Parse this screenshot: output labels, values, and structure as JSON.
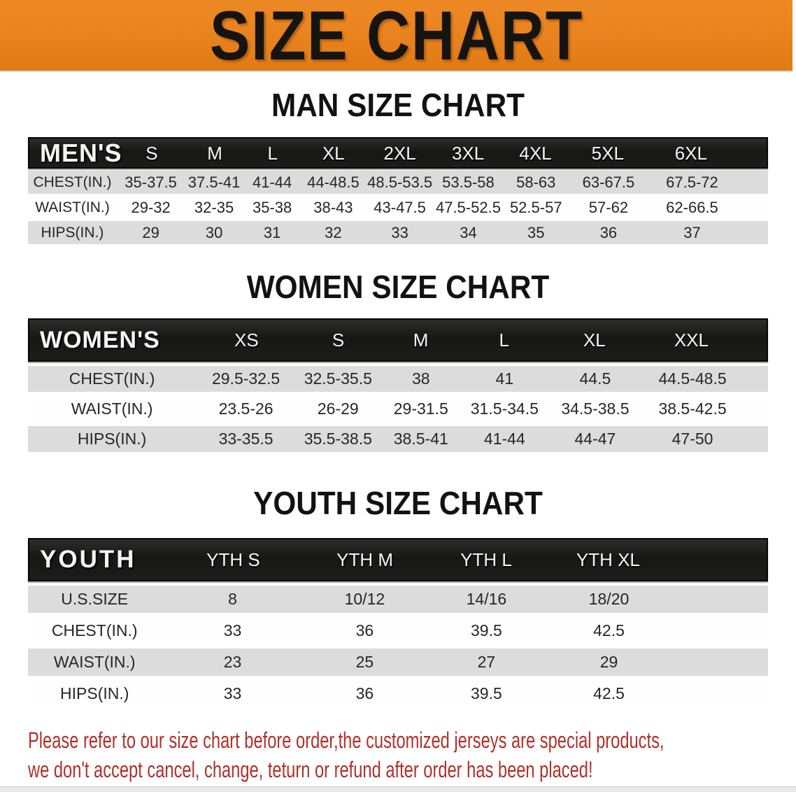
{
  "banner": {
    "title": "SIZE CHART"
  },
  "colors": {
    "banner_bg": "#E8821E",
    "banner_text": "#161410",
    "table_header_bar": "#1B1B19",
    "table_header_text": "#F5F5F2",
    "row_stripe": "#DCDCDC",
    "notice_text": "#B1302A"
  },
  "chart_data": [
    {
      "type": "table",
      "title": "MAN SIZE CHART",
      "corner_label": "MEN'S",
      "columns": [
        "S",
        "M",
        "L",
        "XL",
        "2XL",
        "3XL",
        "4XL",
        "5XL",
        "6XL"
      ],
      "rows": [
        [
          "CHEST(IN.)",
          "35-37.5",
          "37.5-41",
          "41-44",
          "44-48.5",
          "48.5-53.5",
          "53.5-58",
          "58-63",
          "63-67.5",
          "67.5-72"
        ],
        [
          "WAIST(IN.)",
          "29-32",
          "32-35",
          "35-38",
          "38-43",
          "43-47.5",
          "47.5-52.5",
          "52.5-57",
          "57-62",
          "62-66.5"
        ],
        [
          "HIPS(IN.)",
          "29",
          "30",
          "31",
          "32",
          "33",
          "34",
          "35",
          "36",
          "37"
        ]
      ]
    },
    {
      "type": "table",
      "title": "WOMEN SIZE CHART",
      "corner_label": "WOMEN'S",
      "columns": [
        "XS",
        "S",
        "M",
        "L",
        "XL",
        "XXL"
      ],
      "rows": [
        [
          "CHEST(IN.)",
          "29.5-32.5",
          "32.5-35.5",
          "38",
          "41",
          "44.5",
          "44.5-48.5"
        ],
        [
          "WAIST(IN.)",
          "23.5-26",
          "26-29",
          "29-31.5",
          "31.5-34.5",
          "34.5-38.5",
          "38.5-42.5"
        ],
        [
          "HIPS(IN.)",
          "33-35.5",
          "35.5-38.5",
          "38.5-41",
          "41-44",
          "44-47",
          "47-50"
        ]
      ]
    },
    {
      "type": "table",
      "title": "YOUTH SIZE CHART",
      "corner_label": "YOUTH",
      "columns": [
        "YTH S",
        "YTH M",
        "YTH L",
        "YTH XL"
      ],
      "rows": [
        [
          "U.S.SIZE",
          "8",
          "10/12",
          "14/16",
          "18/20"
        ],
        [
          "CHEST(IN.)",
          "33",
          "36",
          "39.5",
          "42.5"
        ],
        [
          "WAIST(IN.)",
          "23",
          "25",
          "27",
          "29"
        ],
        [
          "HIPS(IN.)",
          "33",
          "36",
          "39.5",
          "42.5"
        ]
      ]
    }
  ],
  "footer": {
    "line1": "Please refer to our size chart before order,the customized jerseys are special products,",
    "line2": "we don't accept cancel, change, teturn or refund after order has been placed!"
  }
}
